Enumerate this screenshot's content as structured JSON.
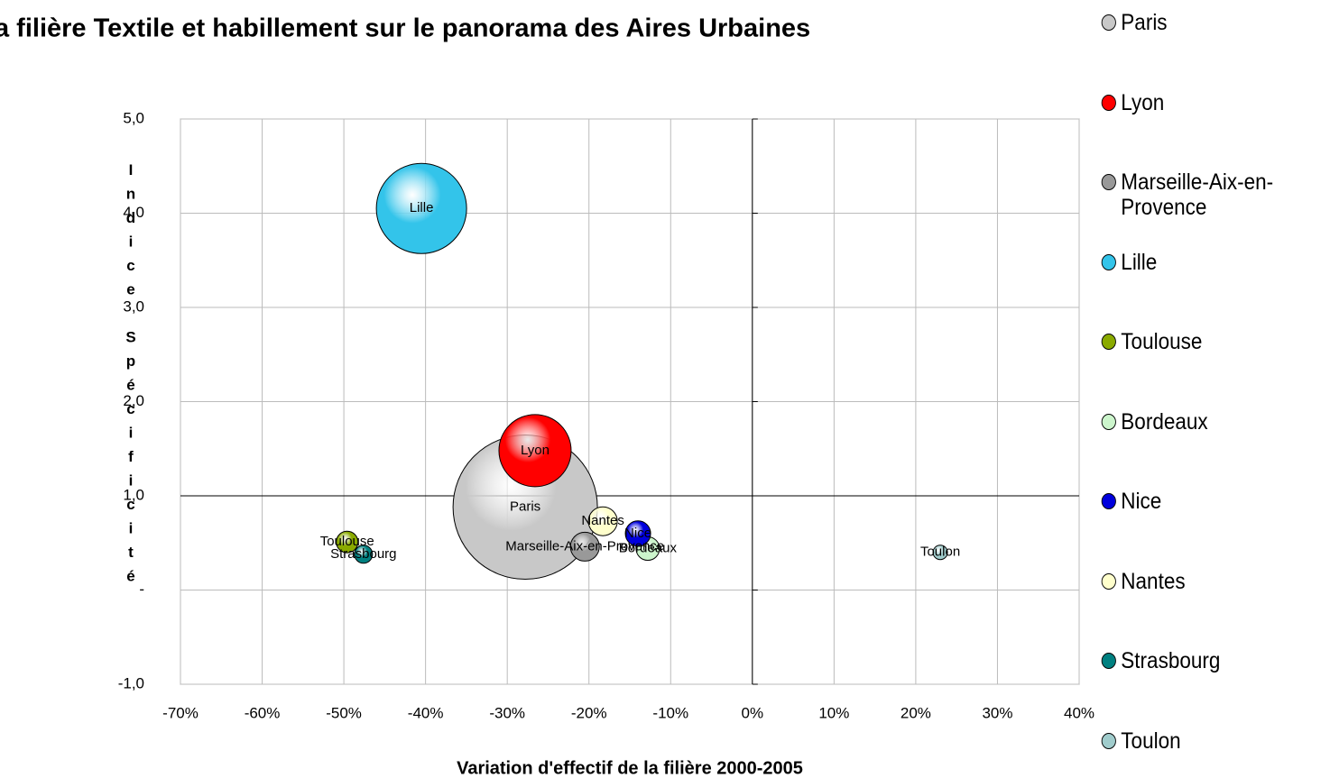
{
  "chart_data": {
    "type": "bubble",
    "title": "a filière Textile et habillement sur le panorama des Aires Urbaines",
    "xlabel": "Variation d'effectif de la filière 2000-2005",
    "ylabel": "Indice Spécificité",
    "xlim": [
      -70,
      40
    ],
    "ylim": [
      -1,
      5
    ],
    "xticks": [
      {
        "value": -70,
        "label": "-70%"
      },
      {
        "value": -60,
        "label": "-60%"
      },
      {
        "value": -50,
        "label": "-50%"
      },
      {
        "value": -40,
        "label": "-40%"
      },
      {
        "value": -30,
        "label": "-30%"
      },
      {
        "value": -20,
        "label": "-20%"
      },
      {
        "value": -10,
        "label": "-10%"
      },
      {
        "value": 0,
        "label": "0%"
      },
      {
        "value": 10,
        "label": "10%"
      },
      {
        "value": 20,
        "label": "20%"
      },
      {
        "value": 30,
        "label": "30%"
      },
      {
        "value": 40,
        "label": "40%"
      }
    ],
    "yticks": [
      {
        "value": -1,
        "label": "-1,0"
      },
      {
        "value": 0,
        "label": "-"
      },
      {
        "value": 1,
        "label": "1,0"
      },
      {
        "value": 2,
        "label": "2,0"
      },
      {
        "value": 3,
        "label": "3,0"
      },
      {
        "value": 4,
        "label": "4,0"
      },
      {
        "value": 5,
        "label": "5,0"
      }
    ],
    "axis_cross": {
      "x": 0,
      "y": 1
    },
    "grid": true,
    "legend": "right",
    "series": [
      {
        "name": "Paris",
        "color": "#c8c8c8",
        "x": -27.8,
        "y": 0.88,
        "size": 6400
      },
      {
        "name": "Lyon",
        "color": "#ff0000",
        "x": -26.6,
        "y": 1.48,
        "size": 1600
      },
      {
        "name": "Marseille-Aix-en-Provence",
        "color": "#999999",
        "x": -20.5,
        "y": 0.46,
        "size": 256
      },
      {
        "name": "Lille",
        "color": "#33c4ea",
        "x": -40.5,
        "y": 4.05,
        "size": 2500
      },
      {
        "name": "Toulouse",
        "color": "#8aaa00",
        "x": -49.6,
        "y": 0.51,
        "size": 144
      },
      {
        "name": "Bordeaux",
        "color": "#ccf5cc",
        "x": -12.8,
        "y": 0.44,
        "size": 169
      },
      {
        "name": "Nice",
        "color": "#0000dd",
        "x": -14.0,
        "y": 0.6,
        "size": 196
      },
      {
        "name": "Nantes",
        "color": "#ffffcc",
        "x": -18.3,
        "y": 0.73,
        "size": 256
      },
      {
        "name": "Strasbourg",
        "color": "#008080",
        "x": -47.6,
        "y": 0.38,
        "size": 100
      },
      {
        "name": "Toulon",
        "color": "#a0cccc",
        "x": 23.0,
        "y": 0.4,
        "size": 64
      }
    ]
  }
}
